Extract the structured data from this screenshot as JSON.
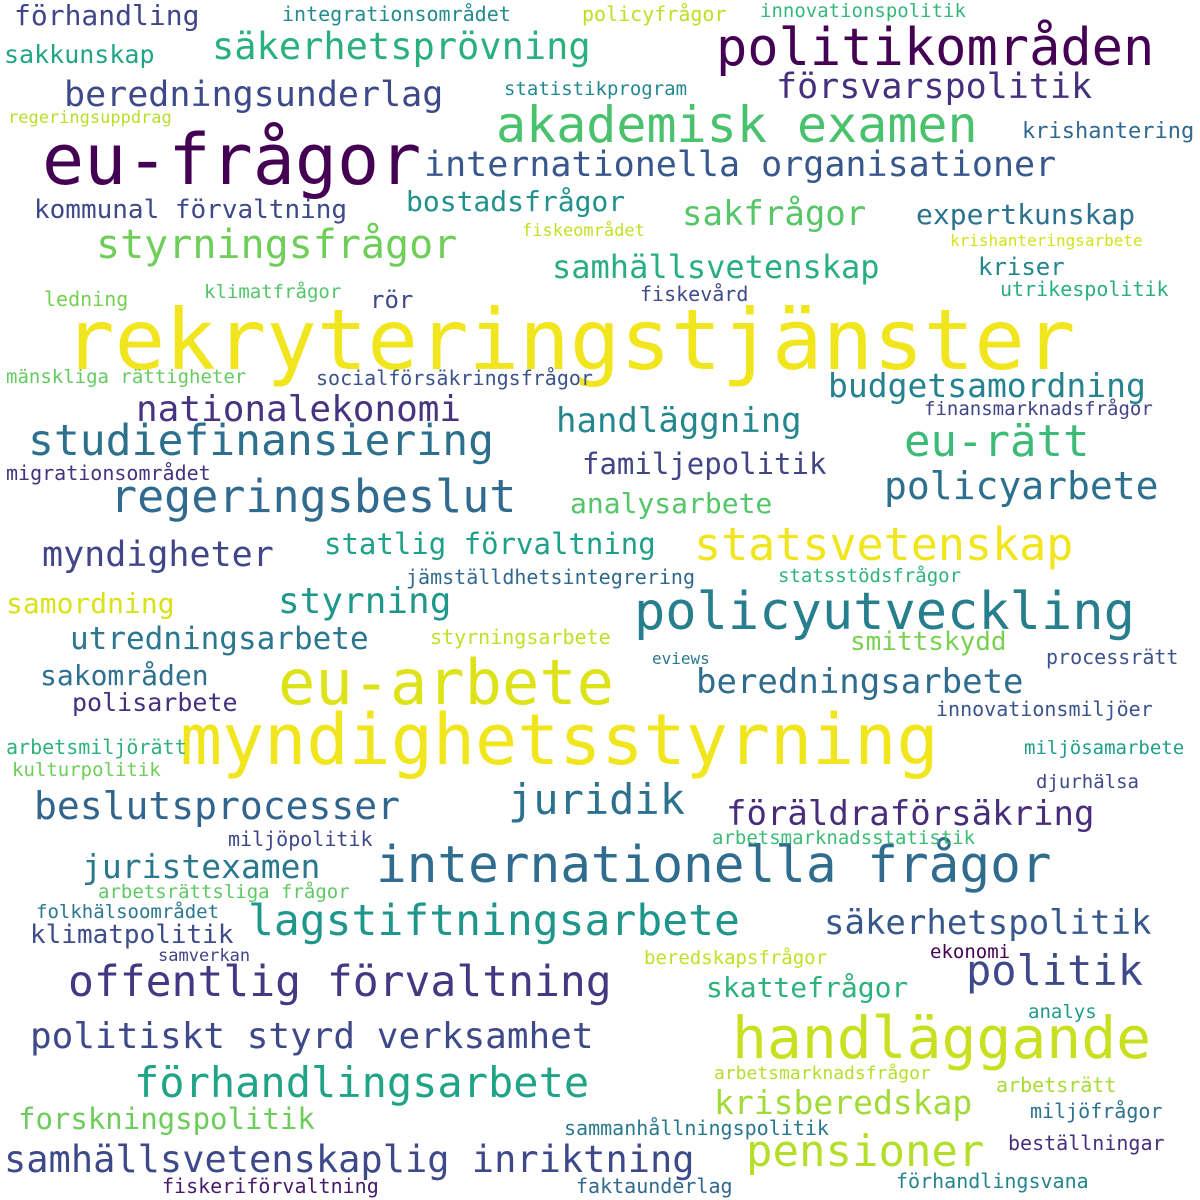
{
  "words": [
    {
      "text": "rekryteringstjänster",
      "color": "#f1e51d"
    },
    {
      "text": "myndighetsstyrning",
      "color": "#f1e51d"
    },
    {
      "text": "eu-frågor",
      "color": "#440154"
    },
    {
      "text": "politikområden",
      "color": "#440154"
    },
    {
      "text": "eu-arbete",
      "color": "#dde318"
    },
    {
      "text": "handläggande",
      "color": "#c8e020"
    },
    {
      "text": "akademisk examen",
      "color": "#4ac16d"
    },
    {
      "text": "internationella frågor",
      "color": "#2f6c8e"
    },
    {
      "text": "policyutveckling",
      "color": "#277f8e"
    },
    {
      "text": "förhandlingsarbete",
      "color": "#20a386"
    },
    {
      "text": "lagstiftningsarbete",
      "color": "#1f968b"
    },
    {
      "text": "pensioner",
      "color": "#b5de2b"
    },
    {
      "text": "statsvetenskap",
      "color": "#f1e51d"
    },
    {
      "text": "regeringsbeslut",
      "color": "#306a8e"
    },
    {
      "text": "studiefinansiering",
      "color": "#2d708e"
    },
    {
      "text": "offentlig förvaltning",
      "color": "#453781"
    },
    {
      "text": "samhällsvetenskaplig inriktning",
      "color": "#3e4989"
    },
    {
      "text": "styrningsfrågor",
      "color": "#6ece58"
    },
    {
      "text": "internationella organisationer",
      "color": "#38588c"
    },
    {
      "text": "politik",
      "color": "#3e4989"
    },
    {
      "text": "juridik",
      "color": "#2c728e"
    },
    {
      "text": "beslutsprocesser",
      "color": "#32658e"
    },
    {
      "text": "eu-rätt",
      "color": "#3bbb75"
    },
    {
      "text": "policyarbete",
      "color": "#2d708e"
    },
    {
      "text": "beredningsunderlag",
      "color": "#3e4989"
    },
    {
      "text": "säkerhetsprövning",
      "color": "#2ab07f"
    },
    {
      "text": "politiskt styrd verksamhet",
      "color": "#3e4989"
    },
    {
      "text": "nationalekonomi",
      "color": "#463480"
    },
    {
      "text": "krisberedskap",
      "color": "#a2da37"
    },
    {
      "text": "försvarspolitik",
      "color": "#46307e"
    },
    {
      "text": "beredningsarbete",
      "color": "#2f6c8e"
    },
    {
      "text": "myndigheter",
      "color": "#404688"
    },
    {
      "text": "styrning",
      "color": "#1f988b"
    },
    {
      "text": "sakfrågor",
      "color": "#56c667"
    },
    {
      "text": "handläggning",
      "color": "#24878e"
    },
    {
      "text": "föräldraförsäkring",
      "color": "#472d7b"
    },
    {
      "text": "utredningsarbete",
      "color": "#2a778e"
    },
    {
      "text": "säkerhetspolitik",
      "color": "#38588c"
    },
    {
      "text": "budgetsamordning",
      "color": "#26828e"
    },
    {
      "text": "juristexamen",
      "color": "#2a788e"
    },
    {
      "text": "samhällsvetenskap",
      "color": "#28ae80"
    },
    {
      "text": "forskningspolitik",
      "color": "#6ccd5a"
    },
    {
      "text": "statlig förvaltning",
      "color": "#1fa088"
    },
    {
      "text": "familjepolitik",
      "color": "#414487"
    },
    {
      "text": "samordning",
      "color": "#d8e219"
    },
    {
      "text": "skattefrågor",
      "color": "#2db27d"
    },
    {
      "text": "sakområden",
      "color": "#2d718e"
    },
    {
      "text": "expertkunskap",
      "color": "#2c728e"
    },
    {
      "text": "analysarbete",
      "color": "#54c568"
    },
    {
      "text": "bostadsfrågor",
      "color": "#21918c"
    },
    {
      "text": "klimatpolitik",
      "color": "#3e4c8a"
    },
    {
      "text": "förhandling",
      "color": "#404688"
    },
    {
      "text": "kommunal förvaltning",
      "color": "#3e4989"
    },
    {
      "text": "polisarbete",
      "color": "#46307e"
    },
    {
      "text": "smittskydd",
      "color": "#7ad151"
    },
    {
      "text": "sakkunskap",
      "color": "#20a486"
    },
    {
      "text": "kriser",
      "color": "#24868e"
    },
    {
      "text": "krishantering",
      "color": "#31688e"
    },
    {
      "text": "rör",
      "color": "#3e4989"
    },
    {
      "text": "fiskevård",
      "color": "#3e4a89"
    },
    {
      "text": "integrationsområdet",
      "color": "#238a8d"
    },
    {
      "text": "policyfrågor",
      "color": "#bddf26"
    },
    {
      "text": "innovationspolitik",
      "color": "#35b779"
    },
    {
      "text": "statistikprogram",
      "color": "#23898e"
    },
    {
      "text": "regeringsuppdrag",
      "color": "#b8de29"
    },
    {
      "text": "fiskeområdet",
      "color": "#c2df23"
    },
    {
      "text": "krishanteringsarbete",
      "color": "#d2e21b"
    },
    {
      "text": "ledning",
      "color": "#75d054"
    },
    {
      "text": "klimatfrågor",
      "color": "#52c569"
    },
    {
      "text": "utrikespolitik",
      "color": "#2ab07f"
    },
    {
      "text": "mänskliga rättigheter",
      "color": "#63cb5f"
    },
    {
      "text": "socialförsäkringsfrågor",
      "color": "#3b528b"
    },
    {
      "text": "finansmarknadsfrågor",
      "color": "#414487"
    },
    {
      "text": "migrationsområdet",
      "color": "#46337f"
    },
    {
      "text": "jämställdhetsintegrering",
      "color": "#31688e"
    },
    {
      "text": "statsstödsfrågor",
      "color": "#2eb37c"
    },
    {
      "text": "styrningsarbete",
      "color": "#c0df25"
    },
    {
      "text": "eviews",
      "color": "#2a788e"
    },
    {
      "text": "processrätt",
      "color": "#3b528b"
    },
    {
      "text": "innovationsmiljöer",
      "color": "#3a548c"
    },
    {
      "text": "arbetsmiljörätt",
      "color": "#2db27d"
    },
    {
      "text": "miljösamarbete",
      "color": "#1f9e89"
    },
    {
      "text": "kulturpolitik",
      "color": "#6ece58"
    },
    {
      "text": "djurhälsa",
      "color": "#3e4989"
    },
    {
      "text": "miljöpolitik",
      "color": "#3f4788"
    },
    {
      "text": "arbetsmarknadsstatistik",
      "color": "#3cbb75"
    },
    {
      "text": "arbetsrättsliga frågor",
      "color": "#5ec962"
    },
    {
      "text": "folkhälsoområdet",
      "color": "#2a788e"
    },
    {
      "text": "samverkan",
      "color": "#414487"
    },
    {
      "text": "ekonomi",
      "color": "#440154"
    },
    {
      "text": "beredskapsfrågor",
      "color": "#c2df23"
    },
    {
      "text": "analys",
      "color": "#1f9a8a"
    },
    {
      "text": "arbetsmarknadsfrågor",
      "color": "#b5de2b"
    },
    {
      "text": "arbetsrätt",
      "color": "#a8db34"
    },
    {
      "text": "miljöfrågor",
      "color": "#2c728e"
    },
    {
      "text": "sammanhållningspolitik",
      "color": "#2a788e"
    },
    {
      "text": "beställningar",
      "color": "#46307e"
    },
    {
      "text": "fiskeriförvaltning",
      "color": "#481a6c"
    },
    {
      "text": "faktaunderlag",
      "color": "#31688e"
    },
    {
      "text": "förhandlingsvana",
      "color": "#25858e"
    }
  ]
}
